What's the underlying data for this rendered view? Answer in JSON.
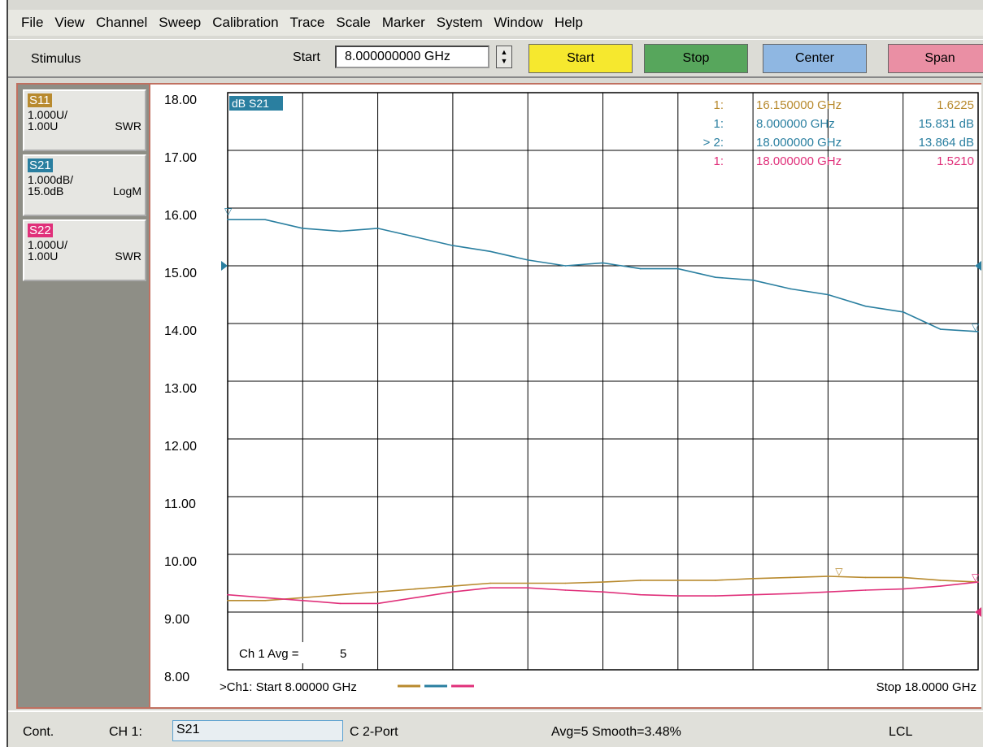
{
  "menu": [
    "File",
    "View",
    "Channel",
    "Sweep",
    "Calibration",
    "Trace",
    "Scale",
    "Marker",
    "System",
    "Window",
    "Help"
  ],
  "toolbar": {
    "stimulus_label": "Stimulus",
    "start_label": "Start",
    "start_value": "8.000000000 GHz",
    "buttons": {
      "start": "Start",
      "stop": "Stop",
      "center": "Center",
      "span": "Span"
    }
  },
  "traces": [
    {
      "tag": "S11",
      "scale": "1.000U/",
      "ref": "1.00U",
      "format": "SWR",
      "color": "#b88a2e"
    },
    {
      "tag": "S21",
      "scale": "1.000dB/",
      "ref": "15.0dB",
      "format": "LogM",
      "color": "#2a7fa0"
    },
    {
      "tag": "S22",
      "scale": "1.000U/",
      "ref": "1.00U",
      "format": "SWR",
      "color": "#e0307a"
    }
  ],
  "plot": {
    "active_trace_label": "dB S21",
    "avg_label": "Ch 1 Avg =",
    "avg_value": "5",
    "footer_start": ">Ch1: Start  8.00000 GHz",
    "footer_stop": "Stop  18.0000 GHz"
  },
  "markers": [
    {
      "num": "1:",
      "freq": "16.150000 GHz",
      "value": "1.6225",
      "color": "#b88a2e"
    },
    {
      "num": "1:",
      "freq": "8.000000 GHz",
      "value": "15.831 dB",
      "color": "#2a7fa0"
    },
    {
      "num": "> 2:",
      "freq": "18.000000 GHz",
      "value": "13.864 dB",
      "color": "#2a7fa0"
    },
    {
      "num": "1:",
      "freq": "18.000000 GHz",
      "value": "1.5210",
      "color": "#e0307a"
    }
  ],
  "chart_data": {
    "type": "line",
    "title": "dB S21",
    "xlabel": "",
    "ylabel": "",
    "xlim": [
      8,
      18
    ],
    "ylim": [
      8,
      18
    ],
    "grid": true,
    "yticks": [
      "18.00",
      "17.00",
      "16.00",
      "15.00",
      "14.00",
      "13.00",
      "12.00",
      "11.00",
      "10.00",
      "9.00",
      "8.00"
    ],
    "x": [
      8.0,
      8.5,
      9.0,
      9.5,
      10.0,
      10.5,
      11.0,
      11.5,
      12.0,
      12.5,
      13.0,
      13.5,
      14.0,
      14.5,
      15.0,
      15.5,
      16.0,
      16.5,
      17.0,
      17.5,
      18.0
    ],
    "series": [
      {
        "name": "S21",
        "color": "#2a7fa0",
        "values": [
          15.8,
          15.8,
          15.65,
          15.6,
          15.65,
          15.5,
          15.35,
          15.25,
          15.1,
          15.0,
          15.05,
          14.95,
          14.95,
          14.8,
          14.75,
          14.6,
          14.5,
          14.3,
          14.2,
          13.9,
          13.86
        ]
      },
      {
        "name": "S11",
        "color": "#b88a2e",
        "values": [
          9.2,
          9.2,
          9.25,
          9.3,
          9.35,
          9.4,
          9.45,
          9.5,
          9.5,
          9.5,
          9.52,
          9.55,
          9.55,
          9.55,
          9.58,
          9.6,
          9.62,
          9.6,
          9.6,
          9.55,
          9.52
        ]
      },
      {
        "name": "S22",
        "color": "#e0307a",
        "values": [
          9.3,
          9.25,
          9.2,
          9.15,
          9.15,
          9.25,
          9.35,
          9.42,
          9.42,
          9.38,
          9.35,
          9.3,
          9.28,
          9.28,
          9.3,
          9.32,
          9.35,
          9.38,
          9.4,
          9.45,
          9.52
        ]
      }
    ]
  },
  "status": {
    "cont": "Cont.",
    "channel": "CH 1:",
    "active": "S21",
    "cal": "C  2-Port",
    "avg": "Avg=5 Smooth=3.48%",
    "lcl": "LCL"
  }
}
